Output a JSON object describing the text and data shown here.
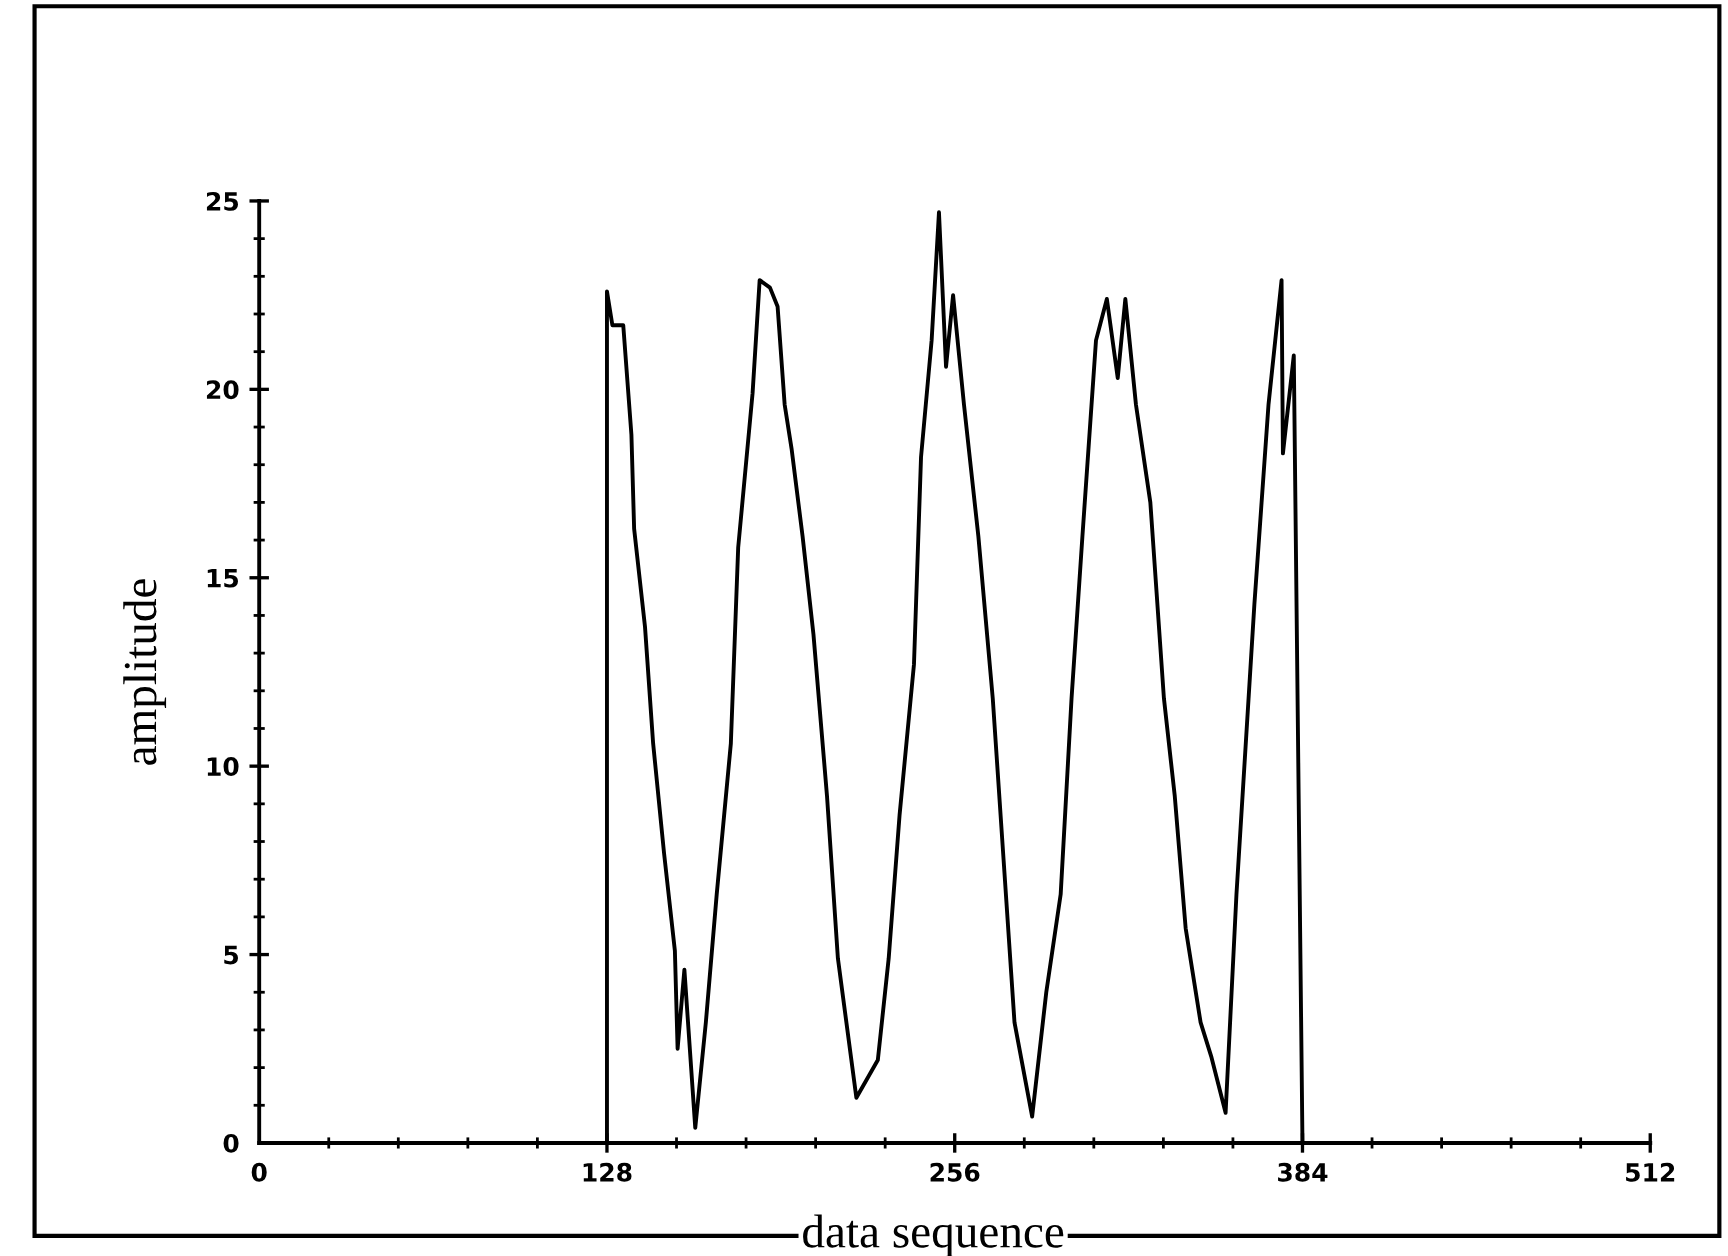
{
  "chart_data": {
    "type": "line",
    "xlabel": "data sequence",
    "ylabel": "amplitude",
    "xlim": [
      0,
      512
    ],
    "ylim": [
      0,
      25
    ],
    "xticks": [
      0,
      128,
      256,
      384,
      512
    ],
    "yticks": [
      0,
      5,
      10,
      15,
      20,
      25
    ],
    "grid": false,
    "legend": false,
    "marker": "none",
    "line_style": "solid",
    "series": [
      {
        "color": "#000000",
        "x": [
          128,
          128,
          130,
          134,
          137,
          138,
          142,
          145,
          149,
          153,
          154,
          156.5,
          160.5,
          164.4,
          168.4,
          173.6,
          176.3,
          181.6,
          184.2,
          188,
          190.8,
          193.4,
          196,
          200,
          204,
          209,
          213,
          219.8,
          227.7,
          231.7,
          235.7,
          241,
          243.6,
          247.5,
          250.2,
          252.8,
          255.4,
          259.4,
          264.7,
          270,
          274,
          278,
          284.5,
          289.7,
          295,
          299,
          303,
          308,
          312,
          316,
          318.8,
          322.7,
          328,
          333,
          337,
          341,
          346.5,
          350.4,
          355.7,
          359.7,
          366.3,
          371.5,
          376.3,
          376.8,
          380.8,
          384
        ],
        "values": [
          0,
          22.6,
          21.7,
          21.7,
          18.8,
          16.3,
          13.7,
          10.6,
          7.7,
          5.1,
          2.5,
          4.6,
          0.4,
          3.2,
          6.6,
          10.6,
          15.8,
          19.9,
          22.9,
          22.7,
          22.2,
          19.6,
          18.4,
          16.1,
          13.5,
          9.2,
          4.9,
          1.2,
          2.2,
          4.9,
          8.7,
          12.7,
          18.2,
          21.3,
          24.7,
          20.6,
          22.5,
          19.6,
          16.1,
          11.8,
          7.5,
          3.2,
          0.7,
          4.0,
          6.6,
          11.8,
          16.1,
          21.3,
          22.4,
          20.3,
          22.4,
          19.6,
          17.0,
          11.8,
          9.2,
          5.7,
          3.2,
          2.3,
          0.8,
          6.6,
          14.3,
          19.6,
          22.9,
          18.3,
          20.9,
          0
        ]
      }
    ]
  }
}
